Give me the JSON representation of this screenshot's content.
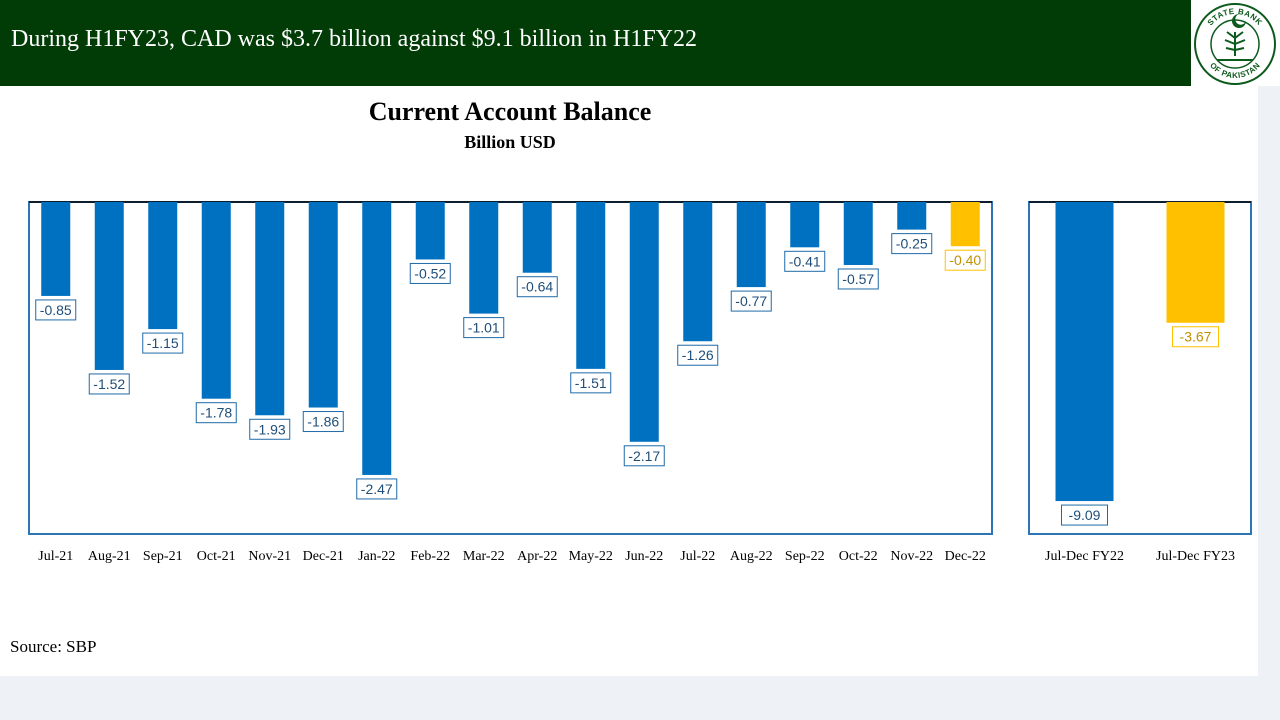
{
  "header": {
    "title": "During H1FY23, CAD was $3.7 billion against $9.1 billion in H1FY22"
  },
  "logo": {
    "text_top": "STATE BANK",
    "text_bottom": "OF PAKISTAN"
  },
  "source": "Source: SBP",
  "colors": {
    "header_bg": "#013b06",
    "bar_blue": "#0070c0",
    "bar_gold": "#ffc000",
    "frame": "#2e75b6"
  },
  "chart_data": [
    {
      "type": "bar",
      "title": "Current Account Balance",
      "subtitle": "Billion USD",
      "categories": [
        "Jul-21",
        "Aug-21",
        "Sep-21",
        "Oct-21",
        "Nov-21",
        "Dec-21",
        "Jan-22",
        "Feb-22",
        "Mar-22",
        "Apr-22",
        "May-22",
        "Jun-22",
        "Jul-22",
        "Aug-22",
        "Sep-22",
        "Oct-22",
        "Nov-22",
        "Dec-22"
      ],
      "values": [
        -0.85,
        -1.52,
        -1.15,
        -1.78,
        -1.93,
        -1.86,
        -2.47,
        -0.52,
        -1.01,
        -0.64,
        -1.51,
        -2.17,
        -1.26,
        -0.77,
        -0.41,
        -0.57,
        -0.25,
        -0.4
      ],
      "value_labels": [
        "-0.85",
        "-1.52",
        "-1.15",
        "-1.78",
        "-1.93",
        "-1.86",
        "-2.47",
        "-0.52",
        "-1.01",
        "-0.64",
        "-1.51",
        "-2.17",
        "-1.26",
        "-0.77",
        "-0.41",
        "-0.57",
        "-0.25",
        "-0.40"
      ],
      "highlight_last": true,
      "ylim": [
        -3,
        0
      ],
      "grid": false,
      "legend": "none"
    },
    {
      "type": "bar",
      "categories": [
        "Jul-Dec FY22",
        "Jul-Dec FY23"
      ],
      "values": [
        -9.09,
        -3.67
      ],
      "value_labels": [
        "-9.09",
        "-3.67"
      ],
      "highlight_last": true,
      "ylim": [
        -9.5,
        0
      ],
      "grid": false,
      "legend": "none"
    }
  ]
}
